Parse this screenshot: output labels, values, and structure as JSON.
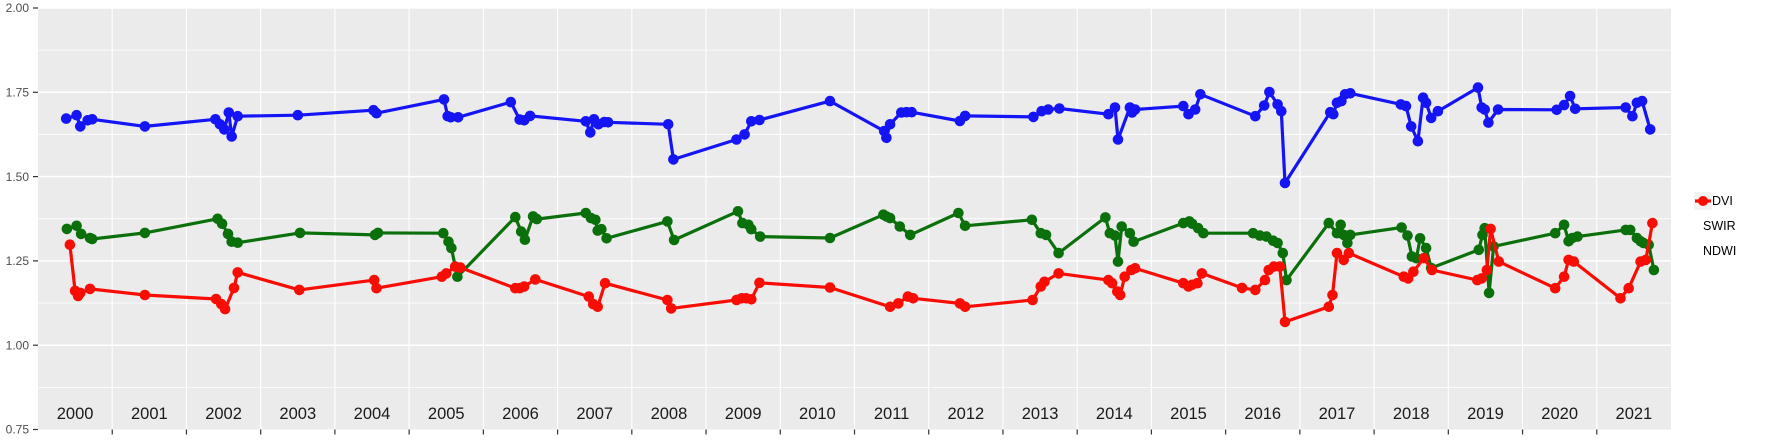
{
  "chart_data": {
    "type": "line",
    "title": "",
    "xlabel": "",
    "ylabel": "",
    "x_axis": {
      "kind": "time",
      "range_years": [
        2000,
        2022
      ],
      "year_labels": [
        "2000",
        "2001",
        "2002",
        "2003",
        "2004",
        "2005",
        "2006",
        "2007",
        "2008",
        "2009",
        "2010",
        "2011",
        "2012",
        "2013",
        "2014",
        "2015",
        "2016",
        "2017",
        "2018",
        "2019",
        "2020",
        "2021"
      ],
      "ticks_at_year_boundaries": [
        2001,
        2002,
        2003,
        2004,
        2005,
        2006,
        2007,
        2008,
        2009,
        2010,
        2011,
        2012,
        2013,
        2014,
        2015,
        2016,
        2017,
        2018,
        2019,
        2020,
        2021
      ]
    },
    "y_axis": {
      "range": [
        0.75,
        2.0
      ],
      "major_ticks": [
        0.75,
        1.0,
        1.25,
        1.5,
        1.75,
        2.0
      ],
      "tick_labels": [
        "0.75",
        "1.00",
        "1.25",
        "1.50",
        "1.75",
        "2.00"
      ],
      "minor_gridlines": [
        0.875,
        1.125,
        1.375,
        1.625,
        1.875
      ]
    },
    "grid": {
      "major": true,
      "minor": true
    },
    "legend_position": "right",
    "style": {
      "panel_bg": "#EBEBEB",
      "grid_color": "#FFFFFF",
      "tick_color": "#333333",
      "axis_text_color": "#4D4D4D",
      "year_text_color": "#1A1A1A",
      "page_bg": "#FFFFFF",
      "legend_key_bg": "#F2F2F2",
      "line_width": 3.2,
      "point_radius": 5.3
    },
    "series": [
      {
        "name": "NDVI",
        "color": "#1414F5",
        "points": [
          [
            2000.38,
            1.672
          ],
          [
            2000.52,
            1.682
          ],
          [
            2000.57,
            1.649
          ],
          [
            2000.67,
            1.667
          ],
          [
            2000.73,
            1.67
          ],
          [
            2001.44,
            1.649
          ],
          [
            2002.39,
            1.67
          ],
          [
            2002.45,
            1.655
          ],
          [
            2002.51,
            1.64
          ],
          [
            2002.57,
            1.69
          ],
          [
            2002.61,
            1.619
          ],
          [
            2002.69,
            1.679
          ],
          [
            2003.5,
            1.682
          ],
          [
            2004.52,
            1.697
          ],
          [
            2004.56,
            1.688
          ],
          [
            2005.47,
            1.729
          ],
          [
            2005.52,
            1.679
          ],
          [
            2005.56,
            1.676
          ],
          [
            2005.66,
            1.676
          ],
          [
            2006.37,
            1.721
          ],
          [
            2006.49,
            1.669
          ],
          [
            2006.55,
            1.667
          ],
          [
            2006.63,
            1.68
          ],
          [
            2007.38,
            1.664
          ],
          [
            2007.44,
            1.631
          ],
          [
            2007.49,
            1.67
          ],
          [
            2007.55,
            1.655
          ],
          [
            2007.63,
            1.662
          ],
          [
            2007.68,
            1.661
          ],
          [
            2008.49,
            1.655
          ],
          [
            2008.56,
            1.551
          ],
          [
            2009.41,
            1.61
          ],
          [
            2009.52,
            1.625
          ],
          [
            2009.61,
            1.664
          ],
          [
            2009.72,
            1.668
          ],
          [
            2010.67,
            1.724
          ],
          [
            2011.4,
            1.635
          ],
          [
            2011.43,
            1.615
          ],
          [
            2011.48,
            1.655
          ],
          [
            2011.63,
            1.69
          ],
          [
            2011.7,
            1.691
          ],
          [
            2011.77,
            1.691
          ],
          [
            2012.42,
            1.665
          ],
          [
            2012.49,
            1.68
          ],
          [
            2013.41,
            1.677
          ],
          [
            2013.52,
            1.694
          ],
          [
            2013.61,
            1.699
          ],
          [
            2013.76,
            1.702
          ],
          [
            2014.42,
            1.685
          ],
          [
            2014.51,
            1.705
          ],
          [
            2014.55,
            1.61
          ],
          [
            2014.71,
            1.705
          ],
          [
            2014.74,
            1.69
          ],
          [
            2014.78,
            1.699
          ],
          [
            2015.43,
            1.709
          ],
          [
            2015.5,
            1.685
          ],
          [
            2015.59,
            1.699
          ],
          [
            2015.66,
            1.744
          ],
          [
            2016.4,
            1.679
          ],
          [
            2016.52,
            1.711
          ],
          [
            2016.59,
            1.751
          ],
          [
            2016.7,
            1.714
          ],
          [
            2016.75,
            1.694
          ],
          [
            2016.8,
            1.481
          ],
          [
            2017.41,
            1.691
          ],
          [
            2017.45,
            1.685
          ],
          [
            2017.5,
            1.719
          ],
          [
            2017.56,
            1.724
          ],
          [
            2017.61,
            1.744
          ],
          [
            2017.68,
            1.747
          ],
          [
            2018.36,
            1.714
          ],
          [
            2018.43,
            1.709
          ],
          [
            2018.5,
            1.649
          ],
          [
            2018.59,
            1.605
          ],
          [
            2018.66,
            1.734
          ],
          [
            2018.7,
            1.719
          ],
          [
            2018.77,
            1.674
          ],
          [
            2018.86,
            1.694
          ],
          [
            2019.4,
            1.764
          ],
          [
            2019.45,
            1.705
          ],
          [
            2019.49,
            1.699
          ],
          [
            2019.54,
            1.66
          ],
          [
            2019.67,
            1.699
          ],
          [
            2020.46,
            1.698
          ],
          [
            2020.56,
            1.712
          ],
          [
            2020.64,
            1.739
          ],
          [
            2020.71,
            1.701
          ],
          [
            2021.39,
            1.705
          ],
          [
            2021.48,
            1.679
          ],
          [
            2021.54,
            1.719
          ],
          [
            2021.61,
            1.724
          ],
          [
            2021.72,
            1.64
          ]
        ]
      },
      {
        "name": "SWIR",
        "color": "#0B700B",
        "points": [
          [
            2000.39,
            1.345
          ],
          [
            2000.52,
            1.354
          ],
          [
            2000.58,
            1.33
          ],
          [
            2000.7,
            1.318
          ],
          [
            2000.73,
            1.315
          ],
          [
            2001.44,
            1.333
          ],
          [
            2002.42,
            1.375
          ],
          [
            2002.48,
            1.36
          ],
          [
            2002.56,
            1.33
          ],
          [
            2002.61,
            1.307
          ],
          [
            2002.69,
            1.304
          ],
          [
            2003.53,
            1.333
          ],
          [
            2004.54,
            1.327
          ],
          [
            2004.58,
            1.333
          ],
          [
            2005.46,
            1.332
          ],
          [
            2005.53,
            1.307
          ],
          [
            2005.57,
            1.288
          ],
          [
            2005.65,
            1.203
          ],
          [
            2006.43,
            1.38
          ],
          [
            2006.51,
            1.337
          ],
          [
            2006.56,
            1.313
          ],
          [
            2006.67,
            1.382
          ],
          [
            2006.72,
            1.374
          ],
          [
            2007.38,
            1.392
          ],
          [
            2007.45,
            1.377
          ],
          [
            2007.51,
            1.372
          ],
          [
            2007.54,
            1.34
          ],
          [
            2007.59,
            1.344
          ],
          [
            2007.66,
            1.317
          ],
          [
            2008.48,
            1.367
          ],
          [
            2008.57,
            1.312
          ],
          [
            2009.43,
            1.397
          ],
          [
            2009.49,
            1.362
          ],
          [
            2009.57,
            1.357
          ],
          [
            2009.61,
            1.344
          ],
          [
            2009.73,
            1.322
          ],
          [
            2010.67,
            1.318
          ],
          [
            2011.39,
            1.387
          ],
          [
            2011.43,
            1.382
          ],
          [
            2011.48,
            1.377
          ],
          [
            2011.61,
            1.352
          ],
          [
            2011.75,
            1.327
          ],
          [
            2012.4,
            1.392
          ],
          [
            2012.49,
            1.354
          ],
          [
            2013.39,
            1.372
          ],
          [
            2013.51,
            1.332
          ],
          [
            2013.58,
            1.327
          ],
          [
            2013.75,
            1.273
          ],
          [
            2014.38,
            1.379
          ],
          [
            2014.44,
            1.332
          ],
          [
            2014.51,
            1.325
          ],
          [
            2014.55,
            1.248
          ],
          [
            2014.6,
            1.352
          ],
          [
            2014.71,
            1.332
          ],
          [
            2014.76,
            1.307
          ],
          [
            2015.43,
            1.362
          ],
          [
            2015.51,
            1.367
          ],
          [
            2015.55,
            1.36
          ],
          [
            2015.63,
            1.347
          ],
          [
            2015.7,
            1.332
          ],
          [
            2016.37,
            1.332
          ],
          [
            2016.46,
            1.325
          ],
          [
            2016.55,
            1.322
          ],
          [
            2016.64,
            1.31
          ],
          [
            2016.7,
            1.303
          ],
          [
            2016.77,
            1.273
          ],
          [
            2016.82,
            1.193
          ],
          [
            2017.39,
            1.362
          ],
          [
            2017.5,
            1.332
          ],
          [
            2017.55,
            1.357
          ],
          [
            2017.59,
            1.327
          ],
          [
            2017.64,
            1.303
          ],
          [
            2017.68,
            1.327
          ],
          [
            2018.37,
            1.349
          ],
          [
            2018.45,
            1.325
          ],
          [
            2018.51,
            1.263
          ],
          [
            2018.57,
            1.258
          ],
          [
            2018.62,
            1.317
          ],
          [
            2018.7,
            1.288
          ],
          [
            2018.77,
            1.229
          ],
          [
            2019.41,
            1.283
          ],
          [
            2019.46,
            1.327
          ],
          [
            2019.49,
            1.347
          ],
          [
            2019.55,
            1.155
          ],
          [
            2019.61,
            1.293
          ],
          [
            2020.44,
            1.332
          ],
          [
            2020.56,
            1.357
          ],
          [
            2020.62,
            1.308
          ],
          [
            2020.67,
            1.318
          ],
          [
            2020.74,
            1.322
          ],
          [
            2021.39,
            1.342
          ],
          [
            2021.45,
            1.342
          ],
          [
            2021.54,
            1.318
          ],
          [
            2021.59,
            1.308
          ],
          [
            2021.63,
            1.303
          ],
          [
            2021.7,
            1.298
          ],
          [
            2021.77,
            1.223
          ]
        ]
      },
      {
        "name": "NDWI",
        "color": "#F80D05",
        "points": [
          [
            2000.43,
            1.298
          ],
          [
            2000.5,
            1.161
          ],
          [
            2000.54,
            1.146
          ],
          [
            2000.57,
            1.155
          ],
          [
            2000.7,
            1.167
          ],
          [
            2001.44,
            1.149
          ],
          [
            2002.4,
            1.137
          ],
          [
            2002.47,
            1.122
          ],
          [
            2002.52,
            1.107
          ],
          [
            2002.64,
            1.17
          ],
          [
            2002.69,
            1.216
          ],
          [
            2003.52,
            1.164
          ],
          [
            2004.53,
            1.193
          ],
          [
            2004.56,
            1.169
          ],
          [
            2005.44,
            1.203
          ],
          [
            2005.5,
            1.213
          ],
          [
            2005.62,
            1.233
          ],
          [
            2005.69,
            1.23
          ],
          [
            2006.43,
            1.169
          ],
          [
            2006.49,
            1.169
          ],
          [
            2006.55,
            1.174
          ],
          [
            2006.7,
            1.195
          ],
          [
            2007.42,
            1.144
          ],
          [
            2007.48,
            1.122
          ],
          [
            2007.54,
            1.114
          ],
          [
            2007.64,
            1.184
          ],
          [
            2008.48,
            1.134
          ],
          [
            2008.53,
            1.109
          ],
          [
            2009.41,
            1.134
          ],
          [
            2009.48,
            1.139
          ],
          [
            2009.54,
            1.139
          ],
          [
            2009.61,
            1.136
          ],
          [
            2009.72,
            1.185
          ],
          [
            2010.67,
            1.171
          ],
          [
            2011.48,
            1.114
          ],
          [
            2011.59,
            1.124
          ],
          [
            2011.72,
            1.144
          ],
          [
            2011.79,
            1.139
          ],
          [
            2012.42,
            1.124
          ],
          [
            2012.49,
            1.114
          ],
          [
            2013.4,
            1.134
          ],
          [
            2013.51,
            1.174
          ],
          [
            2013.56,
            1.188
          ],
          [
            2013.75,
            1.213
          ],
          [
            2014.42,
            1.193
          ],
          [
            2014.47,
            1.184
          ],
          [
            2014.54,
            1.159
          ],
          [
            2014.58,
            1.149
          ],
          [
            2014.64,
            1.203
          ],
          [
            2014.73,
            1.223
          ],
          [
            2014.78,
            1.228
          ],
          [
            2015.43,
            1.184
          ],
          [
            2015.5,
            1.174
          ],
          [
            2015.55,
            1.179
          ],
          [
            2015.62,
            1.184
          ],
          [
            2015.68,
            1.213
          ],
          [
            2016.22,
            1.17
          ],
          [
            2016.4,
            1.164
          ],
          [
            2016.53,
            1.193
          ],
          [
            2016.58,
            1.223
          ],
          [
            2016.65,
            1.233
          ],
          [
            2016.73,
            1.233
          ],
          [
            2016.8,
            1.069
          ],
          [
            2017.39,
            1.114
          ],
          [
            2017.44,
            1.149
          ],
          [
            2017.5,
            1.273
          ],
          [
            2017.59,
            1.253
          ],
          [
            2017.66,
            1.273
          ],
          [
            2018.4,
            1.203
          ],
          [
            2018.46,
            1.198
          ],
          [
            2018.53,
            1.218
          ],
          [
            2018.67,
            1.258
          ],
          [
            2018.78,
            1.223
          ],
          [
            2019.39,
            1.193
          ],
          [
            2019.45,
            1.198
          ],
          [
            2019.52,
            1.223
          ],
          [
            2019.57,
            1.345
          ],
          [
            2019.68,
            1.248
          ],
          [
            2020.44,
            1.169
          ],
          [
            2020.56,
            1.203
          ],
          [
            2020.62,
            1.253
          ],
          [
            2020.69,
            1.248
          ],
          [
            2021.32,
            1.139
          ],
          [
            2021.43,
            1.169
          ],
          [
            2021.59,
            1.248
          ],
          [
            2021.66,
            1.253
          ],
          [
            2021.75,
            1.362
          ]
        ]
      }
    ]
  }
}
